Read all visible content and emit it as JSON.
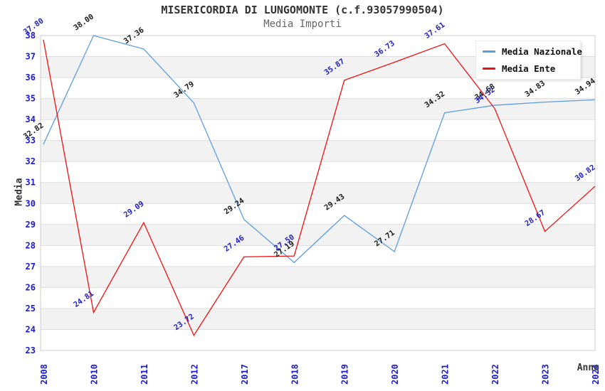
{
  "chart_data": {
    "type": "line",
    "title": "MISERICORDIA DI LUNGOMONTE (c.f.93057990504)",
    "subtitle": "Media Importi",
    "xlabel": "Anno",
    "ylabel": "Media",
    "ylim": [
      23,
      38
    ],
    "ytick_step": 1,
    "grid": {
      "band_color": "#f2f2f2",
      "line_color": "#dddddd",
      "border_color": "#cccccc",
      "bands_on": true
    },
    "tick_color": "#1a1acc",
    "legend_position": "top-right",
    "categories": [
      "2008",
      "2010",
      "2011",
      "2012",
      "2017",
      "2018",
      "2019",
      "2020",
      "2021",
      "2022",
      "2023",
      "2024"
    ],
    "series": [
      {
        "name": "Media Nazionale",
        "color": "#5D9CDC",
        "label_color": "#1a1a1a",
        "values": [
          32.82,
          38.0,
          37.36,
          34.79,
          29.24,
          27.19,
          29.43,
          27.71,
          34.32,
          34.68,
          34.83,
          34.94
        ]
      },
      {
        "name": "Media Ente",
        "color": "#EE1111",
        "label_color": "#2222bb",
        "values": [
          37.8,
          24.81,
          29.09,
          23.72,
          27.46,
          27.5,
          35.87,
          36.73,
          37.61,
          34.52,
          28.67,
          30.82
        ]
      }
    ]
  }
}
